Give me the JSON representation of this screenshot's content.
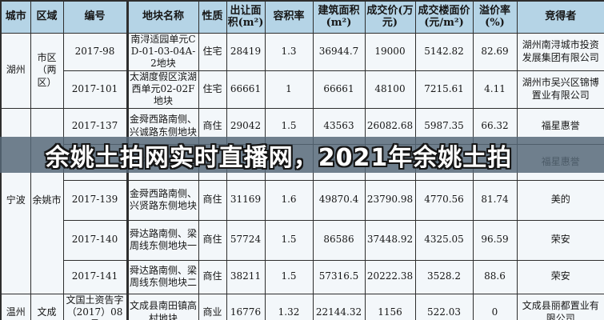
{
  "banner": {
    "text": "余姚土拍网实时直播网，2021年余姚土拍",
    "bg_color": "rgba(86,104,119,0.84)",
    "text_color": "#ffffff"
  },
  "colors": {
    "header_bg": "#b5d4e6",
    "body_bg": "#f3f7fa",
    "border": "#2e2e2e",
    "text": "#161616"
  },
  "table": {
    "columns": [
      "城市",
      "区域",
      "编号",
      "地块名称",
      "性质",
      "出让面积(m²)",
      "容积率",
      "建筑面积(m²)",
      "成交价(万元)",
      "成交楼面价(元/m²)",
      "溢价率(%)",
      "竞得者"
    ],
    "rows": [
      {
        "cells": [
          {
            "col": "city",
            "text": "湖州",
            "rowspan": 2
          },
          {
            "col": "region",
            "text": "市区（两区）",
            "rowspan": 2
          },
          {
            "col": "id",
            "text": "2017-98"
          },
          {
            "col": "plot",
            "text": "南浔适园单元CD-01-03-04A-2地块"
          },
          {
            "col": "type",
            "text": "住宅"
          },
          {
            "col": "area",
            "text": "28419"
          },
          {
            "col": "far",
            "text": "1.3"
          },
          {
            "col": "built",
            "text": "36944.7"
          },
          {
            "col": "price",
            "text": "19000"
          },
          {
            "col": "floor",
            "text": "5142.82"
          },
          {
            "col": "premium",
            "text": "82.69"
          },
          {
            "col": "winner",
            "text": "湖州南浔城市投资发展集团有限公司"
          }
        ]
      },
      {
        "cells": [
          {
            "col": "id",
            "text": "2017-101"
          },
          {
            "col": "plot",
            "text": "太湖度假区滨湖西单元02-02F地块"
          },
          {
            "col": "type",
            "text": "住宅"
          },
          {
            "col": "area",
            "text": "66661"
          },
          {
            "col": "far",
            "text": "1"
          },
          {
            "col": "built",
            "text": "66661"
          },
          {
            "col": "price",
            "text": "48100"
          },
          {
            "col": "floor",
            "text": "7215.61"
          },
          {
            "col": "premium",
            "text": "4.11"
          },
          {
            "col": "winner",
            "text": "湖州市吴兴区锦博置业有限公司"
          }
        ]
      },
      {
        "cells": [
          {
            "col": "city",
            "text": "宁波",
            "rowspan": 5
          },
          {
            "col": "region",
            "text": "余姚市",
            "rowspan": 5
          },
          {
            "col": "id",
            "text": "2017-137"
          },
          {
            "col": "plot",
            "text": "金舜西路南侧、兴诚路东侧地块"
          },
          {
            "col": "type",
            "text": "商住"
          },
          {
            "col": "area",
            "text": "29042"
          },
          {
            "col": "far",
            "text": "1.5"
          },
          {
            "col": "built",
            "text": "43563"
          },
          {
            "col": "price",
            "text": "26082.68"
          },
          {
            "col": "floor",
            "text": "5987.35"
          },
          {
            "col": "premium",
            "text": "66.32"
          },
          {
            "col": "winner",
            "text": "福星惠誉"
          }
        ]
      },
      {
        "cells": [
          {
            "col": "id",
            "text": ""
          },
          {
            "col": "plot",
            "text": "北环西路北侧、"
          },
          {
            "col": "type",
            "text": ""
          },
          {
            "col": "area",
            "text": ""
          },
          {
            "col": "far",
            "text": ""
          },
          {
            "col": "built",
            "text": "42969"
          },
          {
            "col": "price",
            "text": ""
          },
          {
            "col": "floor",
            "text": ""
          },
          {
            "col": "premium",
            "text": ""
          },
          {
            "col": "winner",
            "text": "福星惠誉"
          }
        ]
      },
      {
        "cells": [
          {
            "col": "id",
            "text": "2017-139"
          },
          {
            "col": "plot",
            "text": "金舜西路南侧、兴贤路东侧地块"
          },
          {
            "col": "type",
            "text": "商住"
          },
          {
            "col": "area",
            "text": "31169"
          },
          {
            "col": "far",
            "text": "1.6"
          },
          {
            "col": "built",
            "text": "49870.4"
          },
          {
            "col": "price",
            "text": "23790.98"
          },
          {
            "col": "floor",
            "text": "4770.56"
          },
          {
            "col": "premium",
            "text": "81.74"
          },
          {
            "col": "winner",
            "text": "美的"
          }
        ]
      },
      {
        "cells": [
          {
            "col": "id",
            "text": "2017-140"
          },
          {
            "col": "plot",
            "text": "舜达路南侧、梁周线东侧地块一"
          },
          {
            "col": "type",
            "text": "商住"
          },
          {
            "col": "area",
            "text": "57724"
          },
          {
            "col": "far",
            "text": "1.5"
          },
          {
            "col": "built",
            "text": "86586"
          },
          {
            "col": "price",
            "text": "37448.92"
          },
          {
            "col": "floor",
            "text": "4325.05"
          },
          {
            "col": "premium",
            "text": "96.59"
          },
          {
            "col": "winner",
            "text": "荣安"
          }
        ]
      },
      {
        "cells": [
          {
            "col": "id",
            "text": "2017-141"
          },
          {
            "col": "plot",
            "text": "舜达路南侧、梁周线东侧地块二"
          },
          {
            "col": "type",
            "text": "商住"
          },
          {
            "col": "area",
            "text": "38211"
          },
          {
            "col": "far",
            "text": "1.5"
          },
          {
            "col": "built",
            "text": "57316.5"
          },
          {
            "col": "price",
            "text": "20222.38"
          },
          {
            "col": "floor",
            "text": "3528.2"
          },
          {
            "col": "premium",
            "text": "88.6"
          },
          {
            "col": "winner",
            "text": "荣安"
          }
        ]
      },
      {
        "cells": [
          {
            "col": "city",
            "text": "温州"
          },
          {
            "col": "region",
            "text": "文成"
          },
          {
            "col": "id",
            "text": "文国土资告字（2017）08号"
          },
          {
            "col": "plot",
            "text": "文成县南田镇高村地块"
          },
          {
            "col": "type",
            "text": "商业"
          },
          {
            "col": "area",
            "text": "16776"
          },
          {
            "col": "far",
            "text": "1.32"
          },
          {
            "col": "built",
            "text": "22144.32"
          },
          {
            "col": "price",
            "text": "1156"
          },
          {
            "col": "floor",
            "text": "522.03"
          },
          {
            "col": "premium",
            "text": "0"
          },
          {
            "col": "winner",
            "text": "文成县丽都置业有限公司"
          }
        ]
      }
    ]
  }
}
